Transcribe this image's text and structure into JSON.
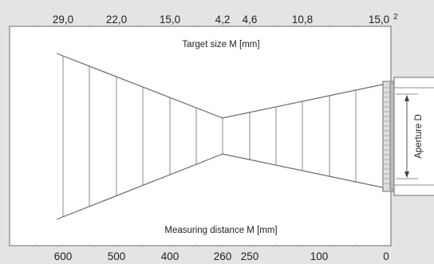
{
  "diagram": {
    "target_label": "Target size M [mm]",
    "distance_label": "Measuring distance M [mm]",
    "aperture_label": "Aperture D",
    "footnote_marker": "2",
    "top_values": [
      "29,0",
      "22,0",
      "15,0",
      "4,2",
      "4,6",
      "10,8",
      "15,0"
    ],
    "bottom_values": [
      "600",
      "500",
      "400",
      "260",
      "250",
      "100",
      "0"
    ],
    "colors": {
      "background": "#e4e4e4",
      "panel": "#ffffff",
      "lines": "#6b6b6b",
      "text": "#222222"
    }
  }
}
